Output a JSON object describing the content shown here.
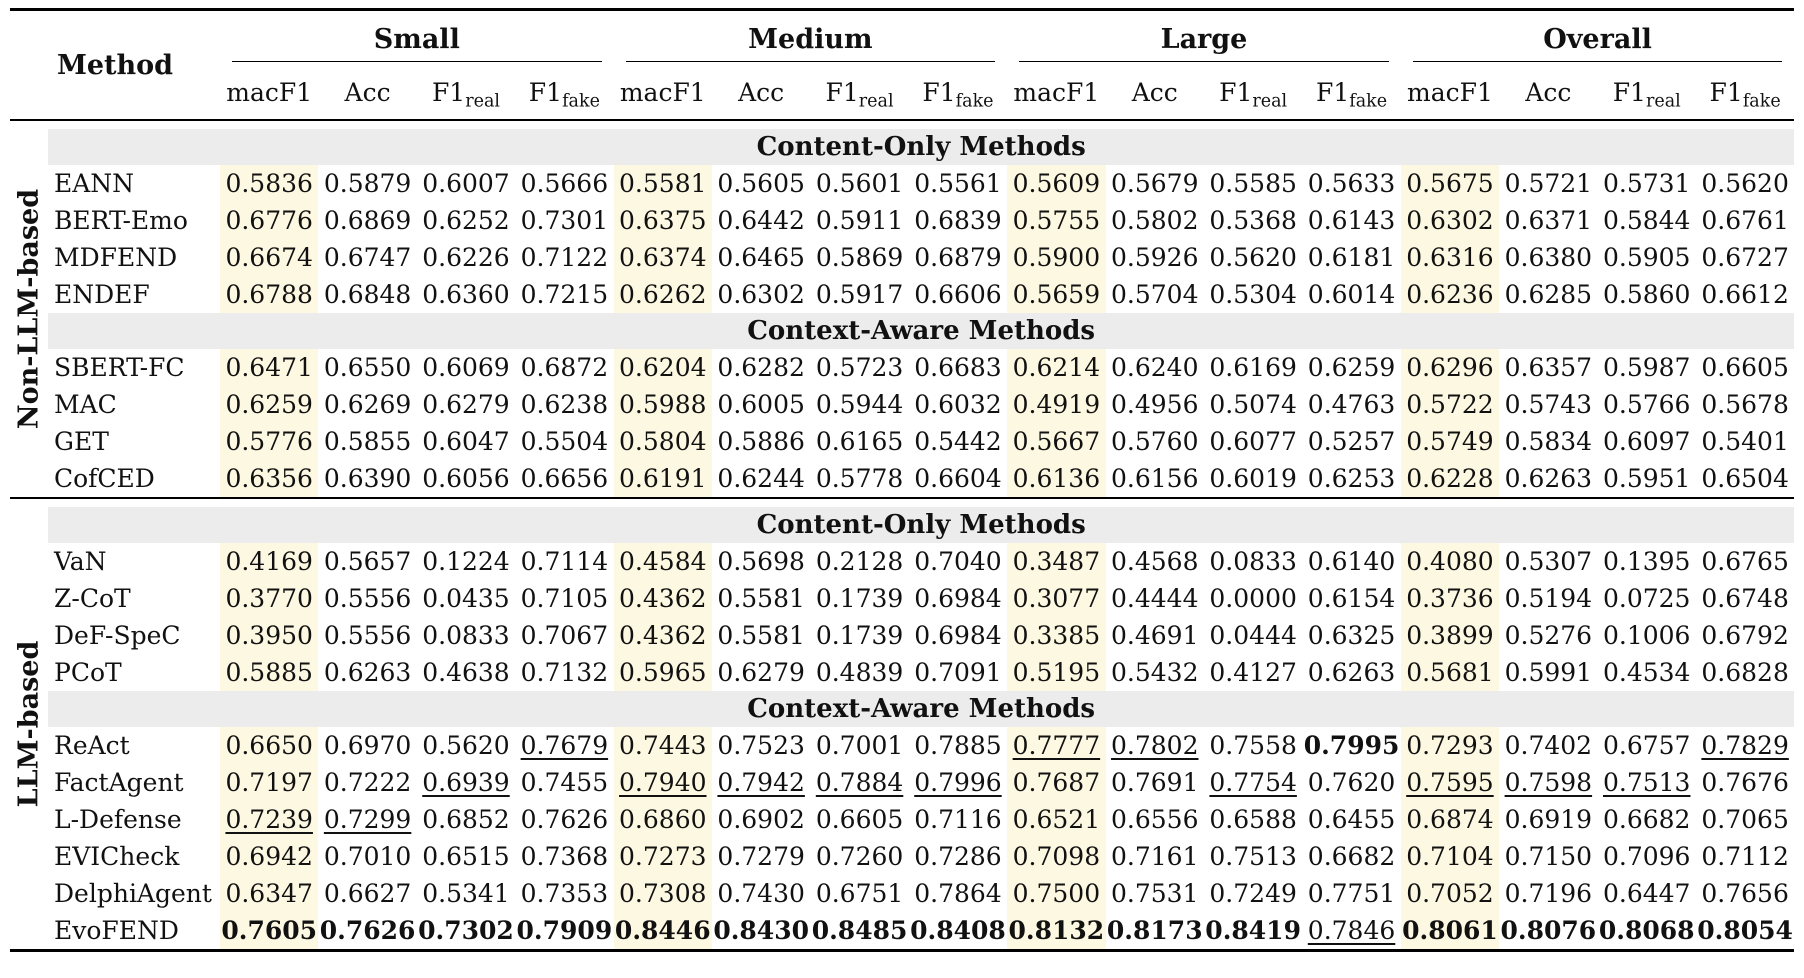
{
  "header": {
    "method": "Method",
    "groups": [
      "Small",
      "Medium",
      "Large",
      "Overall"
    ],
    "metrics": [
      {
        "base": "macF1",
        "sub": ""
      },
      {
        "base": "Acc",
        "sub": ""
      },
      {
        "base": "F1",
        "sub": "real"
      },
      {
        "base": "F1",
        "sub": "fake"
      }
    ]
  },
  "blocks": [
    {
      "label": "Non-LLM-based",
      "sections": [
        {
          "title": "Content-Only Methods",
          "rows": [
            {
              "method": "EANN",
              "values": [
                "0.5836",
                "0.5879",
                "0.6007",
                "0.5666",
                "0.5581",
                "0.5605",
                "0.5601",
                "0.5561",
                "0.5609",
                "0.5679",
                "0.5585",
                "0.5633",
                "0.5675",
                "0.5721",
                "0.5731",
                "0.5620"
              ],
              "best": [],
              "second": []
            },
            {
              "method": "BERT-Emo",
              "values": [
                "0.6776",
                "0.6869",
                "0.6252",
                "0.7301",
                "0.6375",
                "0.6442",
                "0.5911",
                "0.6839",
                "0.5755",
                "0.5802",
                "0.5368",
                "0.6143",
                "0.6302",
                "0.6371",
                "0.5844",
                "0.6761"
              ],
              "best": [],
              "second": []
            },
            {
              "method": "MDFEND",
              "values": [
                "0.6674",
                "0.6747",
                "0.6226",
                "0.7122",
                "0.6374",
                "0.6465",
                "0.5869",
                "0.6879",
                "0.5900",
                "0.5926",
                "0.5620",
                "0.6181",
                "0.6316",
                "0.6380",
                "0.5905",
                "0.6727"
              ],
              "best": [],
              "second": []
            },
            {
              "method": "ENDEF",
              "values": [
                "0.6788",
                "0.6848",
                "0.6360",
                "0.7215",
                "0.6262",
                "0.6302",
                "0.5917",
                "0.6606",
                "0.5659",
                "0.5704",
                "0.5304",
                "0.6014",
                "0.6236",
                "0.6285",
                "0.5860",
                "0.6612"
              ],
              "best": [],
              "second": []
            }
          ]
        },
        {
          "title": "Context-Aware Methods",
          "rows": [
            {
              "method": "SBERT-FC",
              "values": [
                "0.6471",
                "0.6550",
                "0.6069",
                "0.6872",
                "0.6204",
                "0.6282",
                "0.5723",
                "0.6683",
                "0.6214",
                "0.6240",
                "0.6169",
                "0.6259",
                "0.6296",
                "0.6357",
                "0.5987",
                "0.6605"
              ],
              "best": [],
              "second": []
            },
            {
              "method": "MAC",
              "values": [
                "0.6259",
                "0.6269",
                "0.6279",
                "0.6238",
                "0.5988",
                "0.6005",
                "0.5944",
                "0.6032",
                "0.4919",
                "0.4956",
                "0.5074",
                "0.4763",
                "0.5722",
                "0.5743",
                "0.5766",
                "0.5678"
              ],
              "best": [],
              "second": []
            },
            {
              "method": "GET",
              "values": [
                "0.5776",
                "0.5855",
                "0.6047",
                "0.5504",
                "0.5804",
                "0.5886",
                "0.6165",
                "0.5442",
                "0.5667",
                "0.5760",
                "0.6077",
                "0.5257",
                "0.5749",
                "0.5834",
                "0.6097",
                "0.5401"
              ],
              "best": [],
              "second": []
            },
            {
              "method": "CofCED",
              "values": [
                "0.6356",
                "0.6390",
                "0.6056",
                "0.6656",
                "0.6191",
                "0.6244",
                "0.5778",
                "0.6604",
                "0.6136",
                "0.6156",
                "0.6019",
                "0.6253",
                "0.6228",
                "0.6263",
                "0.5951",
                "0.6504"
              ],
              "best": [],
              "second": []
            }
          ]
        }
      ]
    },
    {
      "label": "LLM-based",
      "sections": [
        {
          "title": "Content-Only Methods",
          "rows": [
            {
              "method": "VaN",
              "values": [
                "0.4169",
                "0.5657",
                "0.1224",
                "0.7114",
                "0.4584",
                "0.5698",
                "0.2128",
                "0.7040",
                "0.3487",
                "0.4568",
                "0.0833",
                "0.6140",
                "0.4080",
                "0.5307",
                "0.1395",
                "0.6765"
              ],
              "best": [],
              "second": []
            },
            {
              "method": "Z-CoT",
              "values": [
                "0.3770",
                "0.5556",
                "0.0435",
                "0.7105",
                "0.4362",
                "0.5581",
                "0.1739",
                "0.6984",
                "0.3077",
                "0.4444",
                "0.0000",
                "0.6154",
                "0.3736",
                "0.5194",
                "0.0725",
                "0.6748"
              ],
              "best": [],
              "second": []
            },
            {
              "method": "DeF-SpeC",
              "values": [
                "0.3950",
                "0.5556",
                "0.0833",
                "0.7067",
                "0.4362",
                "0.5581",
                "0.1739",
                "0.6984",
                "0.3385",
                "0.4691",
                "0.0444",
                "0.6325",
                "0.3899",
                "0.5276",
                "0.1006",
                "0.6792"
              ],
              "best": [],
              "second": []
            },
            {
              "method": "PCoT",
              "values": [
                "0.5885",
                "0.6263",
                "0.4638",
                "0.7132",
                "0.5965",
                "0.6279",
                "0.4839",
                "0.7091",
                "0.5195",
                "0.5432",
                "0.4127",
                "0.6263",
                "0.5681",
                "0.5991",
                "0.4534",
                "0.6828"
              ],
              "best": [],
              "second": []
            }
          ]
        },
        {
          "title": "Context-Aware Methods",
          "rows": [
            {
              "method": "ReAct",
              "values": [
                "0.6650",
                "0.6970",
                "0.5620",
                "0.7679",
                "0.7443",
                "0.7523",
                "0.7001",
                "0.7885",
                "0.7777",
                "0.7802",
                "0.7558",
                "0.7995",
                "0.7293",
                "0.7402",
                "0.6757",
                "0.7829"
              ],
              "best": [
                11
              ],
              "second": [
                3,
                8,
                9,
                15
              ]
            },
            {
              "method": "FactAgent",
              "values": [
                "0.7197",
                "0.7222",
                "0.6939",
                "0.7455",
                "0.7940",
                "0.7942",
                "0.7884",
                "0.7996",
                "0.7687",
                "0.7691",
                "0.7754",
                "0.7620",
                "0.7595",
                "0.7598",
                "0.7513",
                "0.7676"
              ],
              "best": [],
              "second": [
                2,
                4,
                5,
                6,
                7,
                10,
                12,
                13,
                14
              ]
            },
            {
              "method": "L-Defense",
              "values": [
                "0.7239",
                "0.7299",
                "0.6852",
                "0.7626",
                "0.6860",
                "0.6902",
                "0.6605",
                "0.7116",
                "0.6521",
                "0.6556",
                "0.6588",
                "0.6455",
                "0.6874",
                "0.6919",
                "0.6682",
                "0.7065"
              ],
              "best": [],
              "second": [
                0,
                1
              ]
            },
            {
              "method": "EVICheck",
              "values": [
                "0.6942",
                "0.7010",
                "0.6515",
                "0.7368",
                "0.7273",
                "0.7279",
                "0.7260",
                "0.7286",
                "0.7098",
                "0.7161",
                "0.7513",
                "0.6682",
                "0.7104",
                "0.7150",
                "0.7096",
                "0.7112"
              ],
              "best": [],
              "second": []
            },
            {
              "method": "DelphiAgent",
              "values": [
                "0.6347",
                "0.6627",
                "0.5341",
                "0.7353",
                "0.7308",
                "0.7430",
                "0.6751",
                "0.7864",
                "0.7500",
                "0.7531",
                "0.7249",
                "0.7751",
                "0.7052",
                "0.7196",
                "0.6447",
                "0.7656"
              ],
              "best": [],
              "second": []
            },
            {
              "method": "EvoFEND",
              "values": [
                "0.7605",
                "0.7626",
                "0.7302",
                "0.7909",
                "0.8446",
                "0.8430",
                "0.8485",
                "0.8408",
                "0.8132",
                "0.8173",
                "0.8419",
                "0.7846",
                "0.8061",
                "0.8076",
                "0.8068",
                "0.8054"
              ],
              "best": [
                0,
                1,
                2,
                3,
                4,
                5,
                6,
                7,
                8,
                9,
                10,
                12,
                13,
                14,
                15
              ],
              "second": [
                11
              ]
            }
          ]
        }
      ]
    }
  ],
  "colors": {
    "highlight": "#fdf8e1",
    "section_bg": "#ececec"
  }
}
